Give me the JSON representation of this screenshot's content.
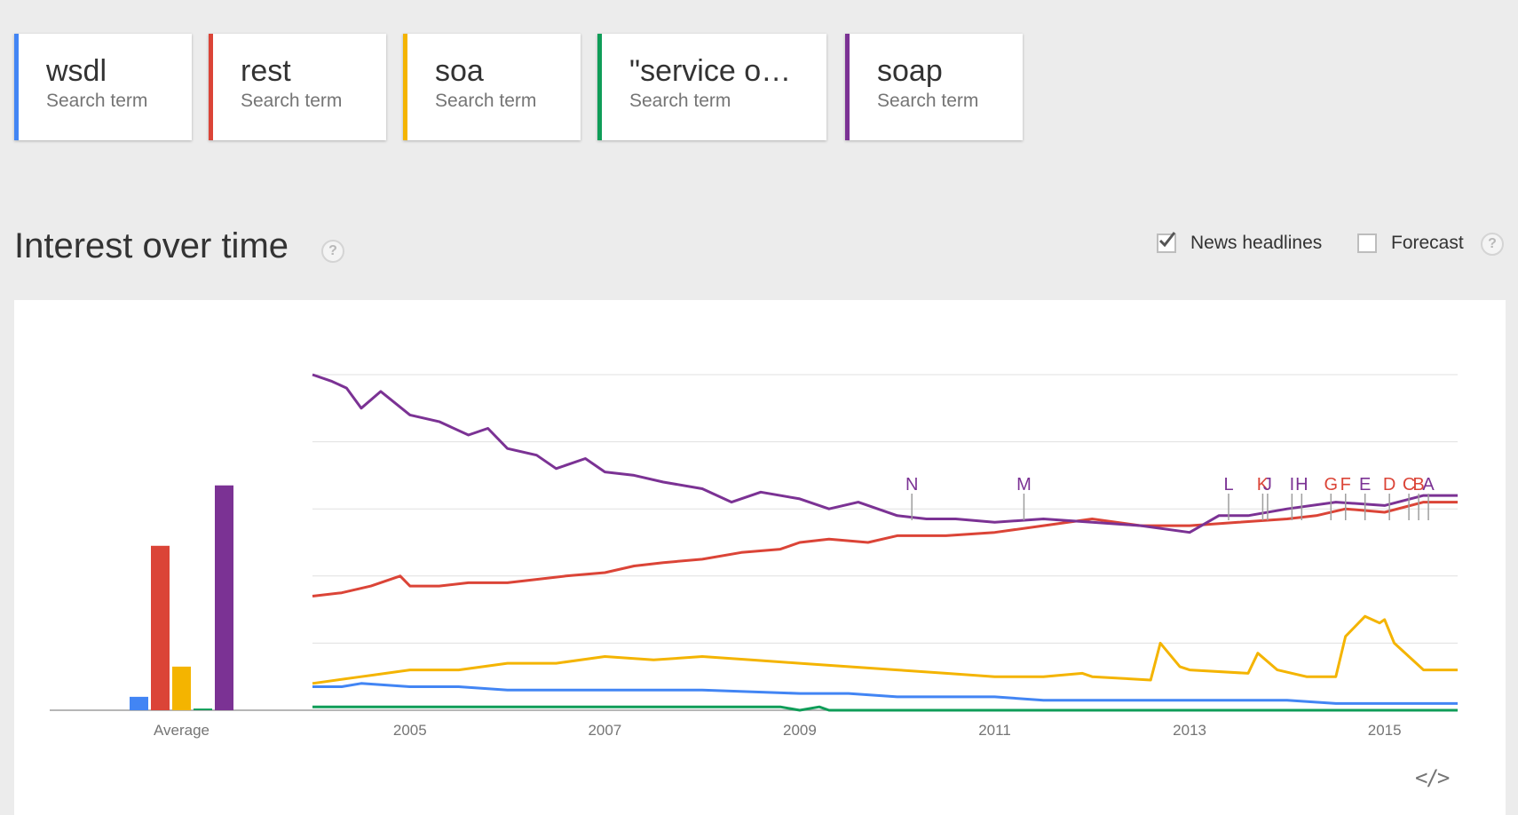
{
  "terms": [
    {
      "name": "wsdl",
      "sub": "Search term",
      "color": "#4285f4"
    },
    {
      "name": "rest",
      "sub": "Search term",
      "color": "#db4437"
    },
    {
      "name": "soa",
      "sub": "Search term",
      "color": "#f4b400"
    },
    {
      "name": "\"service o…",
      "sub": "Search term",
      "color": "#0f9d58"
    },
    {
      "name": "soap",
      "sub": "Search term",
      "color": "#7b3294"
    }
  ],
  "section": {
    "title": "Interest over time",
    "help": "?",
    "news_label": "News headlines",
    "news_checked": true,
    "forecast_label": "Forecast",
    "forecast_checked": false
  },
  "chart_data": {
    "type": "line",
    "average": {
      "label": "Average",
      "values": [
        4,
        49,
        13,
        0.5,
        67
      ]
    },
    "x_ticks": [
      "2005",
      "2007",
      "2009",
      "2011",
      "2013",
      "2015"
    ],
    "x_range": [
      2004.0,
      2015.75
    ],
    "ylim": [
      0,
      100
    ],
    "grid": true,
    "series": [
      {
        "name": "wsdl",
        "color": "#4285f4",
        "points": [
          [
            2004.0,
            7
          ],
          [
            2004.3,
            7
          ],
          [
            2004.5,
            8
          ],
          [
            2005.0,
            7
          ],
          [
            2005.5,
            7
          ],
          [
            2006.0,
            6
          ],
          [
            2007.0,
            6
          ],
          [
            2008.0,
            6
          ],
          [
            2009.0,
            5
          ],
          [
            2009.5,
            5
          ],
          [
            2010.0,
            4
          ],
          [
            2011.0,
            4
          ],
          [
            2011.5,
            3
          ],
          [
            2012.0,
            3
          ],
          [
            2013.0,
            3
          ],
          [
            2013.5,
            3
          ],
          [
            2014.0,
            3
          ],
          [
            2014.5,
            2
          ],
          [
            2015.0,
            2
          ],
          [
            2015.75,
            2
          ]
        ]
      },
      {
        "name": "rest",
        "color": "#db4437",
        "points": [
          [
            2004.0,
            34
          ],
          [
            2004.3,
            35
          ],
          [
            2004.6,
            37
          ],
          [
            2004.9,
            40
          ],
          [
            2005.0,
            37
          ],
          [
            2005.3,
            37
          ],
          [
            2005.6,
            38
          ],
          [
            2006.0,
            38
          ],
          [
            2006.3,
            39
          ],
          [
            2006.6,
            40
          ],
          [
            2007.0,
            41
          ],
          [
            2007.3,
            43
          ],
          [
            2007.6,
            44
          ],
          [
            2008.0,
            45
          ],
          [
            2008.4,
            47
          ],
          [
            2008.8,
            48
          ],
          [
            2009.0,
            50
          ],
          [
            2009.3,
            51
          ],
          [
            2009.7,
            50
          ],
          [
            2010.0,
            52
          ],
          [
            2010.5,
            52
          ],
          [
            2011.0,
            53
          ],
          [
            2011.5,
            55
          ],
          [
            2012.0,
            57
          ],
          [
            2012.5,
            55
          ],
          [
            2013.0,
            55
          ],
          [
            2013.5,
            56
          ],
          [
            2014.0,
            57
          ],
          [
            2014.3,
            58
          ],
          [
            2014.6,
            60
          ],
          [
            2015.0,
            59
          ],
          [
            2015.4,
            62
          ],
          [
            2015.75,
            62
          ]
        ]
      },
      {
        "name": "soa",
        "color": "#f4b400",
        "points": [
          [
            2004.0,
            8
          ],
          [
            2004.5,
            10
          ],
          [
            2005.0,
            12
          ],
          [
            2005.5,
            12
          ],
          [
            2006.0,
            14
          ],
          [
            2006.5,
            14
          ],
          [
            2007.0,
            16
          ],
          [
            2007.5,
            15
          ],
          [
            2008.0,
            16
          ],
          [
            2008.5,
            15
          ],
          [
            2009.0,
            14
          ],
          [
            2009.5,
            13
          ],
          [
            2010.0,
            12
          ],
          [
            2010.5,
            11
          ],
          [
            2011.0,
            10
          ],
          [
            2011.5,
            10
          ],
          [
            2011.9,
            11
          ],
          [
            2012.0,
            10
          ],
          [
            2012.6,
            9
          ],
          [
            2012.7,
            20
          ],
          [
            2012.9,
            13
          ],
          [
            2013.0,
            12
          ],
          [
            2013.6,
            11
          ],
          [
            2013.7,
            17
          ],
          [
            2013.9,
            12
          ],
          [
            2014.2,
            10
          ],
          [
            2014.5,
            10
          ],
          [
            2014.6,
            22
          ],
          [
            2014.8,
            28
          ],
          [
            2014.95,
            26
          ],
          [
            2015.0,
            27
          ],
          [
            2015.1,
            20
          ],
          [
            2015.4,
            12
          ],
          [
            2015.75,
            12
          ]
        ]
      },
      {
        "name": "\"service o…",
        "color": "#0f9d58",
        "points": [
          [
            2004.0,
            1
          ],
          [
            2008.8,
            1
          ],
          [
            2009.0,
            0
          ],
          [
            2009.2,
            1
          ],
          [
            2009.3,
            0
          ],
          [
            2015.75,
            0
          ]
        ]
      },
      {
        "name": "soap",
        "color": "#7b3294",
        "points": [
          [
            2004.0,
            100
          ],
          [
            2004.2,
            98
          ],
          [
            2004.35,
            96
          ],
          [
            2004.5,
            90
          ],
          [
            2004.7,
            95
          ],
          [
            2005.0,
            88
          ],
          [
            2005.3,
            86
          ],
          [
            2005.6,
            82
          ],
          [
            2005.8,
            84
          ],
          [
            2006.0,
            78
          ],
          [
            2006.3,
            76
          ],
          [
            2006.5,
            72
          ],
          [
            2006.8,
            75
          ],
          [
            2007.0,
            71
          ],
          [
            2007.3,
            70
          ],
          [
            2007.6,
            68
          ],
          [
            2008.0,
            66
          ],
          [
            2008.3,
            62
          ],
          [
            2008.6,
            65
          ],
          [
            2009.0,
            63
          ],
          [
            2009.3,
            60
          ],
          [
            2009.6,
            62
          ],
          [
            2010.0,
            58
          ],
          [
            2010.3,
            57
          ],
          [
            2010.6,
            57
          ],
          [
            2011.0,
            56
          ],
          [
            2011.5,
            57
          ],
          [
            2012.0,
            56
          ],
          [
            2012.5,
            55
          ],
          [
            2013.0,
            53
          ],
          [
            2013.3,
            58
          ],
          [
            2013.6,
            58
          ],
          [
            2014.0,
            60
          ],
          [
            2014.5,
            62
          ],
          [
            2015.0,
            61
          ],
          [
            2015.4,
            64
          ],
          [
            2015.75,
            64
          ]
        ]
      }
    ],
    "annotations": [
      {
        "label": "N",
        "x": 2010.15,
        "color": "#7b3294"
      },
      {
        "label": "M",
        "x": 2011.3,
        "color": "#7b3294"
      },
      {
        "label": "L",
        "x": 2013.4,
        "color": "#7b3294"
      },
      {
        "label": "K",
        "x": 2013.75,
        "color": "#db4437"
      },
      {
        "label": "J",
        "x": 2013.8,
        "color": "#7b3294"
      },
      {
        "label": "I",
        "x": 2014.05,
        "color": "#7b3294"
      },
      {
        "label": "H",
        "x": 2014.15,
        "color": "#7b3294"
      },
      {
        "label": "G",
        "x": 2014.45,
        "color": "#db4437"
      },
      {
        "label": "F",
        "x": 2014.6,
        "color": "#db4437"
      },
      {
        "label": "E",
        "x": 2014.8,
        "color": "#7b3294"
      },
      {
        "label": "D",
        "x": 2015.05,
        "color": "#db4437"
      },
      {
        "label": "C",
        "x": 2015.25,
        "color": "#db4437"
      },
      {
        "label": "B",
        "x": 2015.35,
        "color": "#db4437"
      },
      {
        "label": "A",
        "x": 2015.45,
        "color": "#7b3294"
      }
    ]
  },
  "embed_icon": "embed-code-icon",
  "embed_glyph": "</>"
}
